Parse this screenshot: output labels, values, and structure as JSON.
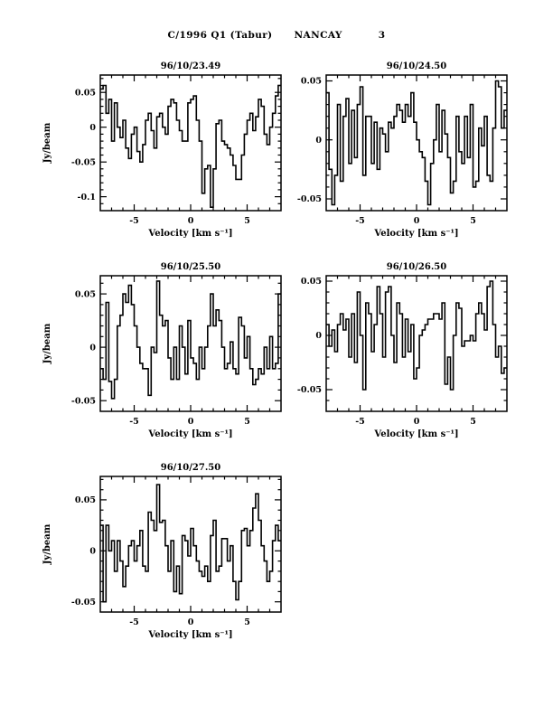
{
  "header": {
    "object": "C/1996 Q1 (Tabur)",
    "telescope": "NANCAY",
    "page_number": "3"
  },
  "chart_data": [
    {
      "type": "line",
      "subtype": "histogram-step",
      "title": "96/10/23.49",
      "xlabel": "Velocity [km s⁻¹]",
      "ylabel": "Jy/beam",
      "ylabel_shown": true,
      "xlim": [
        -8,
        8
      ],
      "ylim": [
        -0.12,
        0.075
      ],
      "xticks": [
        -5,
        0,
        5
      ],
      "yticks": [
        0.05,
        0,
        -0.05,
        -0.1
      ],
      "x_minor_step": 1,
      "y_minor_step": 0.01,
      "x_start": -8,
      "dx": 0.25,
      "values": [
        0.055,
        0.06,
        0.02,
        0.04,
        -0.02,
        0.035,
        0.0,
        -0.015,
        0.01,
        -0.03,
        -0.045,
        -0.01,
        0.0,
        -0.035,
        -0.05,
        -0.025,
        0.01,
        0.02,
        -0.005,
        -0.03,
        0.015,
        0.02,
        0.0,
        -0.01,
        0.03,
        0.04,
        0.035,
        0.01,
        -0.005,
        -0.02,
        -0.02,
        0.035,
        0.04,
        0.045,
        0.01,
        -0.02,
        -0.095,
        -0.06,
        -0.055,
        -0.115,
        -0.06,
        0.005,
        0.01,
        -0.02,
        -0.025,
        -0.03,
        -0.04,
        -0.055,
        -0.075,
        -0.075,
        -0.04,
        -0.01,
        0.01,
        0.02,
        -0.005,
        0.015,
        0.04,
        0.03,
        -0.01,
        -0.025,
        0.0,
        0.02,
        0.045,
        0.06
      ]
    },
    {
      "type": "line",
      "subtype": "histogram-step",
      "title": "96/10/24.50",
      "xlabel": "Velocity [km s⁻¹]",
      "ylabel": "Jy/beam",
      "ylabel_shown": false,
      "xlim": [
        -8,
        8
      ],
      "ylim": [
        -0.06,
        0.055
      ],
      "xticks": [
        -5,
        0,
        5
      ],
      "yticks": [
        0.05,
        0,
        -0.05
      ],
      "x_minor_step": 1,
      "y_minor_step": 0.01,
      "x_start": -8,
      "dx": 0.25,
      "values": [
        0.04,
        -0.025,
        -0.055,
        -0.03,
        0.03,
        -0.035,
        0.02,
        0.035,
        -0.02,
        0.025,
        -0.015,
        0.03,
        0.045,
        -0.03,
        0.02,
        0.02,
        -0.02,
        0.015,
        -0.025,
        0.01,
        0.005,
        -0.01,
        0.015,
        0.01,
        0.02,
        0.03,
        0.025,
        0.015,
        0.03,
        0.02,
        0.04,
        0.015,
        0.0,
        -0.01,
        -0.015,
        -0.035,
        -0.055,
        -0.02,
        0.0,
        0.03,
        -0.01,
        0.025,
        0.005,
        -0.015,
        -0.045,
        -0.035,
        0.02,
        -0.01,
        -0.02,
        0.02,
        -0.015,
        0.03,
        -0.04,
        -0.035,
        0.01,
        -0.005,
        0.02,
        -0.03,
        -0.035,
        0.01,
        0.05,
        0.045,
        0.01,
        0.025
      ]
    },
    {
      "type": "line",
      "subtype": "histogram-step",
      "title": "96/10/25.50",
      "xlabel": "Velocity [km s⁻¹]",
      "ylabel": "Jy/beam",
      "ylabel_shown": true,
      "xlim": [
        -8,
        8
      ],
      "ylim": [
        -0.06,
        0.067
      ],
      "xticks": [
        -5,
        0,
        5
      ],
      "yticks": [
        0.05,
        0,
        -0.05
      ],
      "x_minor_step": 1,
      "y_minor_step": 0.01,
      "x_start": -8,
      "dx": 0.25,
      "values": [
        -0.02,
        -0.03,
        0.042,
        -0.032,
        -0.048,
        -0.03,
        0.02,
        0.03,
        0.05,
        0.042,
        0.058,
        0.04,
        0.02,
        0.0,
        -0.015,
        -0.02,
        -0.02,
        -0.045,
        0.0,
        -0.005,
        0.062,
        0.03,
        0.02,
        0.025,
        -0.01,
        -0.03,
        0.0,
        -0.03,
        0.02,
        0.0,
        -0.025,
        0.025,
        -0.01,
        -0.015,
        -0.03,
        0.0,
        -0.02,
        0.0,
        0.02,
        0.05,
        0.02,
        0.035,
        0.025,
        0.0,
        -0.02,
        -0.015,
        0.005,
        -0.02,
        -0.025,
        0.028,
        0.02,
        -0.01,
        0.01,
        -0.02,
        -0.035,
        -0.03,
        -0.02,
        -0.025,
        0.0,
        -0.02,
        0.01,
        -0.02,
        -0.015,
        0.05
      ]
    },
    {
      "type": "line",
      "subtype": "histogram-step",
      "title": "96/10/26.50",
      "xlabel": "Velocity [km s⁻¹]",
      "ylabel": "Jy/beam",
      "ylabel_shown": false,
      "xlim": [
        -8,
        8
      ],
      "ylim": [
        -0.07,
        0.055
      ],
      "xticks": [
        -5,
        0,
        5
      ],
      "yticks": [
        0.05,
        0,
        -0.05
      ],
      "x_minor_step": 1,
      "y_minor_step": 0.01,
      "x_start": -8,
      "dx": 0.25,
      "values": [
        0.01,
        -0.01,
        0.005,
        -0.015,
        0.01,
        0.02,
        0.005,
        0.015,
        -0.02,
        0.02,
        -0.025,
        0.04,
        0.0,
        -0.05,
        0.03,
        0.02,
        -0.015,
        0.01,
        0.045,
        0.02,
        -0.02,
        0.04,
        0.045,
        0.0,
        -0.025,
        0.03,
        0.02,
        -0.02,
        0.015,
        -0.015,
        0.01,
        -0.04,
        -0.03,
        0.0,
        0.005,
        0.01,
        0.015,
        0.015,
        0.02,
        0.02,
        0.015,
        0.03,
        -0.045,
        -0.02,
        -0.05,
        0.0,
        0.03,
        0.025,
        -0.01,
        -0.005,
        -0.005,
        0.0,
        -0.005,
        0.02,
        0.03,
        0.02,
        0.005,
        0.045,
        0.05,
        0.01,
        -0.02,
        -0.01,
        -0.035,
        -0.03
      ]
    },
    {
      "type": "line",
      "subtype": "histogram-step",
      "title": "96/10/27.50",
      "xlabel": "Velocity [km s⁻¹]",
      "ylabel": "Jy/beam",
      "ylabel_shown": true,
      "xlim": [
        -8,
        8
      ],
      "ylim": [
        -0.06,
        0.073
      ],
      "xticks": [
        -5,
        0,
        5
      ],
      "yticks": [
        0.05,
        0,
        -0.05
      ],
      "x_minor_step": 1,
      "y_minor_step": 0.01,
      "x_start": -8,
      "dx": 0.25,
      "values": [
        0.025,
        -0.05,
        0.025,
        0.0,
        0.01,
        -0.02,
        0.01,
        -0.01,
        -0.035,
        -0.015,
        0.005,
        0.01,
        -0.01,
        0.005,
        0.02,
        -0.015,
        -0.02,
        0.038,
        0.03,
        0.02,
        0.065,
        0.028,
        0.03,
        0.005,
        -0.02,
        0.01,
        -0.04,
        -0.015,
        -0.042,
        0.015,
        0.01,
        -0.005,
        0.022,
        0.005,
        -0.01,
        -0.02,
        -0.025,
        -0.015,
        -0.03,
        0.015,
        0.03,
        -0.02,
        -0.015,
        0.012,
        0.012,
        -0.01,
        0.005,
        -0.03,
        -0.048,
        -0.03,
        0.02,
        0.022,
        0.005,
        0.02,
        0.042,
        0.056,
        0.03,
        0.005,
        -0.01,
        -0.03,
        -0.02,
        0.01,
        0.025,
        0.01
      ]
    }
  ]
}
